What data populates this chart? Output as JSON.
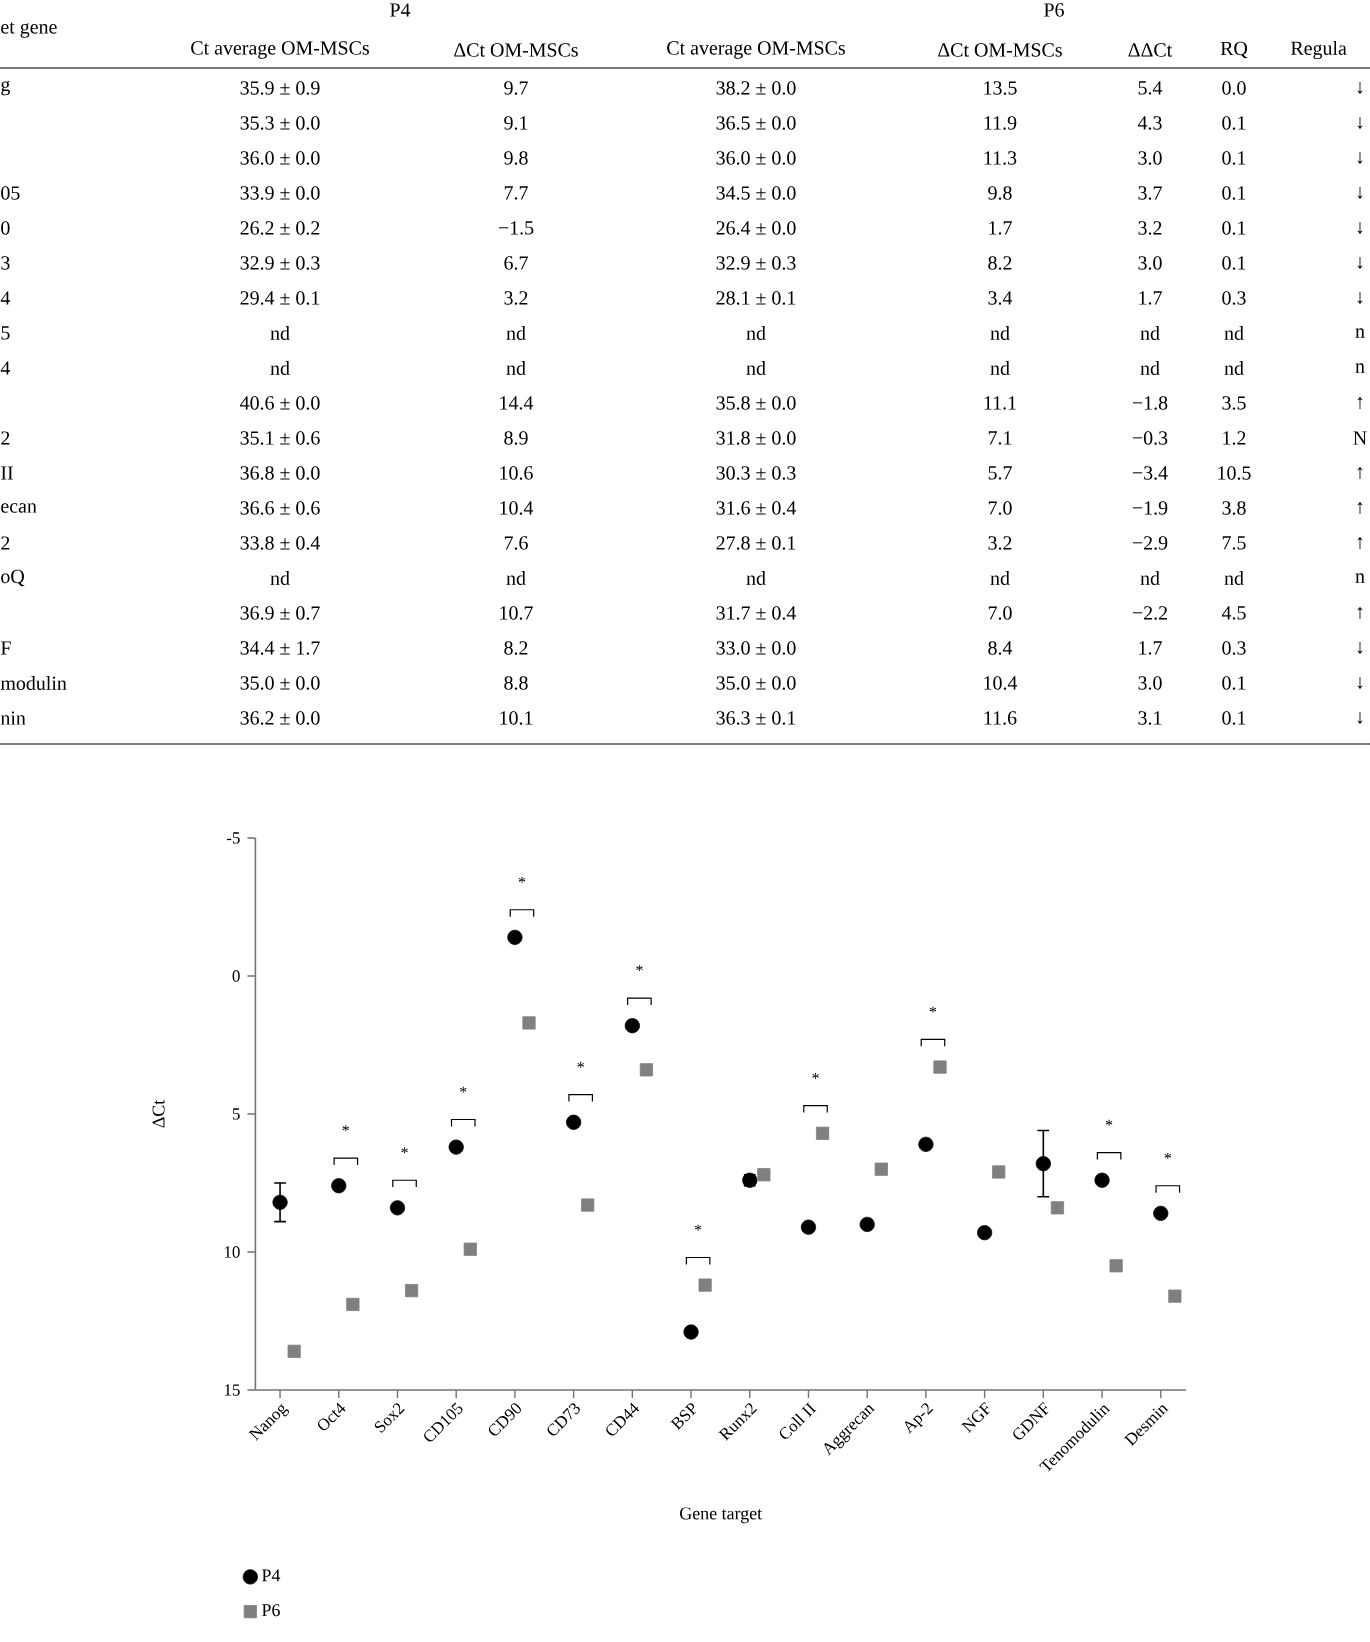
{
  "chart_data": [
    {
      "type": "other",
      "annotations": [
        "et gene",
        "P4",
        "P6"
      ],
      "categories": [
        "Ct average OM-MSCs",
        "ΔCt OM-MSCs",
        "Ct average OM-MSCs",
        "ΔCt OM-MSCs",
        "ΔΔCt",
        "RQ",
        "Regula"
      ],
      "y_categories": [
        "g",
        null,
        null,
        "05",
        "0",
        "3",
        "4",
        "5",
        "4",
        null,
        "2",
        "II",
        "ecan",
        "2",
        "oQ",
        null,
        "F",
        "modulin",
        "nin"
      ],
      "cell_labels": [
        [
          "35.9 ± 0.9",
          "9.7",
          "38.2 ± 0.0",
          "13.5",
          "5.4",
          "0.0",
          "↓"
        ],
        [
          "35.3 ± 0.0",
          "9.1",
          "36.5 ± 0.0",
          "11.9",
          "4.3",
          "0.1",
          "↓"
        ],
        [
          "36.0 ± 0.0",
          "9.8",
          "36.0 ± 0.0",
          "11.3",
          "3.0",
          "0.1",
          "↓"
        ],
        [
          "33.9 ± 0.0",
          "7.7",
          "34.5 ± 0.0",
          "9.8",
          "3.7",
          "0.1",
          "↓"
        ],
        [
          "26.2 ± 0.2",
          "−1.5",
          "26.4 ± 0.0",
          "1.7",
          "3.2",
          "0.1",
          "↓"
        ],
        [
          "32.9 ± 0.3",
          "6.7",
          "32.9 ± 0.3",
          "8.2",
          "3.0",
          "0.1",
          "↓"
        ],
        [
          "29.4 ± 0.1",
          "3.2",
          "28.1 ± 0.1",
          "3.4",
          "1.7",
          "0.3",
          "↓"
        ],
        [
          "nd",
          "nd",
          "nd",
          "nd",
          "nd",
          "nd",
          "n"
        ],
        [
          "nd",
          "nd",
          "nd",
          "nd",
          "nd",
          "nd",
          "n"
        ],
        [
          "40.6 ± 0.0",
          "14.4",
          "35.8 ± 0.0",
          "11.1",
          "−1.8",
          "3.5",
          "↑"
        ],
        [
          "35.1 ± 0.6",
          "8.9",
          "31.8 ± 0.0",
          "7.1",
          "−0.3",
          "1.2",
          "N"
        ],
        [
          "36.8 ± 0.0",
          "10.6",
          "30.3 ± 0.3",
          "5.7",
          "−3.4",
          "10.5",
          "↑"
        ],
        [
          "36.6 ± 0.6",
          "10.4",
          "31.6 ± 0.4",
          "7.0",
          "−1.9",
          "3.8",
          "↑"
        ],
        [
          "33.8 ± 0.4",
          "7.6",
          "27.8 ± 0.1",
          "3.2",
          "−2.9",
          "7.5",
          "↑"
        ],
        [
          "nd",
          "nd",
          "nd",
          "nd",
          "nd",
          "nd",
          "n"
        ],
        [
          "36.9 ± 0.7",
          "10.7",
          "31.7 ± 0.4",
          "7.0",
          "−2.2",
          "4.5",
          "↑"
        ],
        [
          "34.4 ± 1.7",
          "8.2",
          "33.0 ± 0.0",
          "8.4",
          "1.7",
          "0.3",
          "↓"
        ],
        [
          "35.0 ± 0.0",
          "8.8",
          "35.0 ± 0.0",
          "10.4",
          "3.0",
          "0.1",
          "↓"
        ],
        [
          "36.2 ± 0.0",
          "10.1",
          "36.3 ± 0.1",
          "11.6",
          "3.1",
          "0.1",
          "↓"
        ]
      ]
    },
    {
      "type": "scatter",
      "xlabel": "Gene target",
      "ylabel": "ΔCt",
      "categories": [
        "Nanog",
        "Oct4",
        "Sox2",
        "CD105",
        "CD90",
        "CD73",
        "CD44",
        "BSP",
        "Runx2",
        "Coll II",
        "Aggrecan",
        "Ap-2",
        "NGF",
        "GDNF",
        "Tenomodulin",
        "Desmin"
      ],
      "ylim": [
        15,
        -5
      ],
      "yticks": [
        -5,
        0,
        5,
        10,
        15
      ],
      "legend": "bottom left",
      "grid": false,
      "series": [
        {
          "name": "P4",
          "color": "#000000",
          "marker": "circle",
          "values": [
            8.2,
            7.6,
            8.4,
            6.2,
            -1.4,
            5.3,
            1.8,
            12.9,
            7.4,
            9.1,
            9.0,
            6.1,
            9.3,
            6.8,
            7.4,
            8.6
          ],
          "errors": [
            0.7,
            null,
            null,
            null,
            null,
            null,
            null,
            null,
            0.2,
            null,
            null,
            null,
            null,
            1.2,
            null,
            null
          ]
        },
        {
          "name": "P6",
          "color": "#808080",
          "marker": "square",
          "values": [
            13.6,
            11.9,
            11.4,
            9.9,
            1.7,
            8.3,
            3.4,
            11.2,
            7.2,
            5.7,
            7.0,
            3.3,
            7.1,
            8.4,
            10.5,
            11.6
          ]
        }
      ],
      "annotations": [
        null,
        "*",
        "*",
        "*",
        "*",
        "*",
        "*",
        "*",
        null,
        "*",
        null,
        "*",
        null,
        null,
        "*",
        "*"
      ]
    }
  ]
}
